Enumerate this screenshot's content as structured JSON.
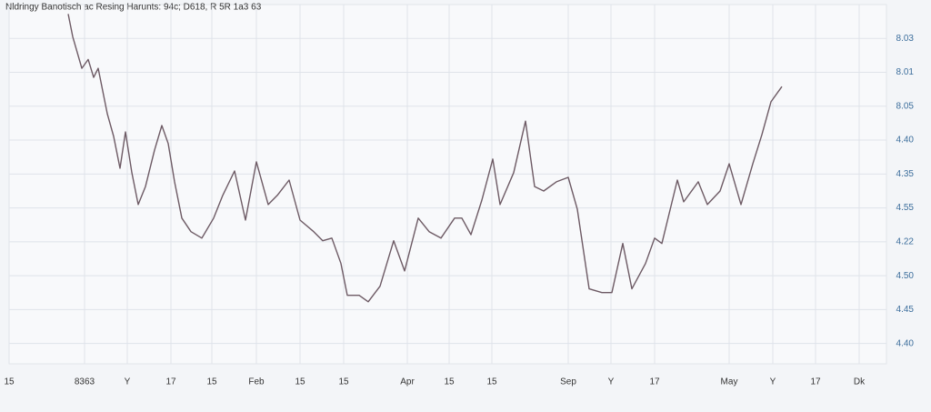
{
  "chart_data": {
    "type": "line",
    "title": "Nldringy Banotisch ac Resing Harunts: 94c; D618, R 5R 1a3 63",
    "x": [
      65,
      70,
      80,
      87,
      93,
      98,
      108,
      115,
      122,
      128,
      135,
      142,
      150,
      160,
      168,
      175,
      182,
      190,
      200,
      212,
      225,
      235,
      248,
      260,
      272,
      285,
      295,
      308,
      320,
      335,
      345,
      355,
      365,
      372,
      385,
      395,
      408,
      423,
      435,
      450,
      462,
      475,
      490,
      498,
      508,
      520,
      532,
      540,
      555,
      568,
      578,
      588,
      602,
      615,
      625,
      638,
      652,
      663,
      675,
      685,
      700,
      710,
      718,
      735,
      742,
      758,
      768,
      782,
      792,
      805,
      818,
      828,
      838,
      850
    ],
    "series": [
      {
        "name": "line",
        "color": "#6d5a64",
        "values": [
          10.72,
          10.05,
          9.12,
          9.38,
          8.85,
          9.12,
          7.78,
          7.11,
          6.17,
          7.24,
          6.04,
          5.1,
          5.63,
          6.71,
          7.43,
          6.9,
          5.77,
          4.7,
          4.3,
          4.11,
          4.7,
          5.37,
          6.09,
          4.64,
          6.36,
          5.1,
          5.37,
          5.82,
          4.64,
          4.3,
          4.03,
          4.11,
          3.36,
          2.42,
          2.42,
          2.23,
          2.69,
          4.03,
          3.14,
          4.7,
          4.3,
          4.11,
          4.7,
          4.7,
          4.21,
          5.23,
          6.44,
          5.1,
          6.04,
          7.56,
          5.63,
          5.5,
          5.77,
          5.9,
          4.96,
          2.61,
          2.5,
          2.5,
          3.95,
          2.61,
          3.36,
          4.11,
          3.95,
          5.82,
          5.18,
          5.77,
          5.1,
          5.5,
          6.3,
          5.1,
          6.3,
          7.16,
          8.13,
          8.58
        ]
      }
    ],
    "xlim": [
      0,
      935
    ],
    "xticks": [
      {
        "value": 0,
        "label": "15"
      },
      {
        "value": 83,
        "label": "8363"
      },
      {
        "value": 130,
        "label": "Y"
      },
      {
        "value": 178,
        "label": "17"
      },
      {
        "value": 223,
        "label": "15"
      },
      {
        "value": 272,
        "label": "Feb"
      },
      {
        "value": 320,
        "label": "15"
      },
      {
        "value": 368,
        "label": "15"
      },
      {
        "value": 438,
        "label": "Apr"
      },
      {
        "value": 484,
        "label": "15"
      },
      {
        "value": 531,
        "label": "15"
      },
      {
        "value": 615,
        "label": "Sep"
      },
      {
        "value": 662,
        "label": "Y"
      },
      {
        "value": 710,
        "label": "17"
      },
      {
        "value": 792,
        "label": "May"
      },
      {
        "value": 840,
        "label": "Y"
      },
      {
        "value": 887,
        "label": "17"
      },
      {
        "value": 935,
        "label": "Dk"
      }
    ],
    "ylim": [
      0.4,
      11
    ],
    "yticks": [
      {
        "value": 10,
        "label": "8.03"
      },
      {
        "value": 9,
        "label": "8.01"
      },
      {
        "value": 8,
        "label": "8.05"
      },
      {
        "value": 7,
        "label": "4.40"
      },
      {
        "value": 6,
        "label": "4.35"
      },
      {
        "value": 5,
        "label": "4.55"
      },
      {
        "value": 4,
        "label": "4.22"
      },
      {
        "value": 3,
        "label": "4.50"
      },
      {
        "value": 2,
        "label": "4.45"
      },
      {
        "value": 1,
        "label": "4.40"
      }
    ],
    "tick_color": "#3c6e9c",
    "grid": true
  }
}
